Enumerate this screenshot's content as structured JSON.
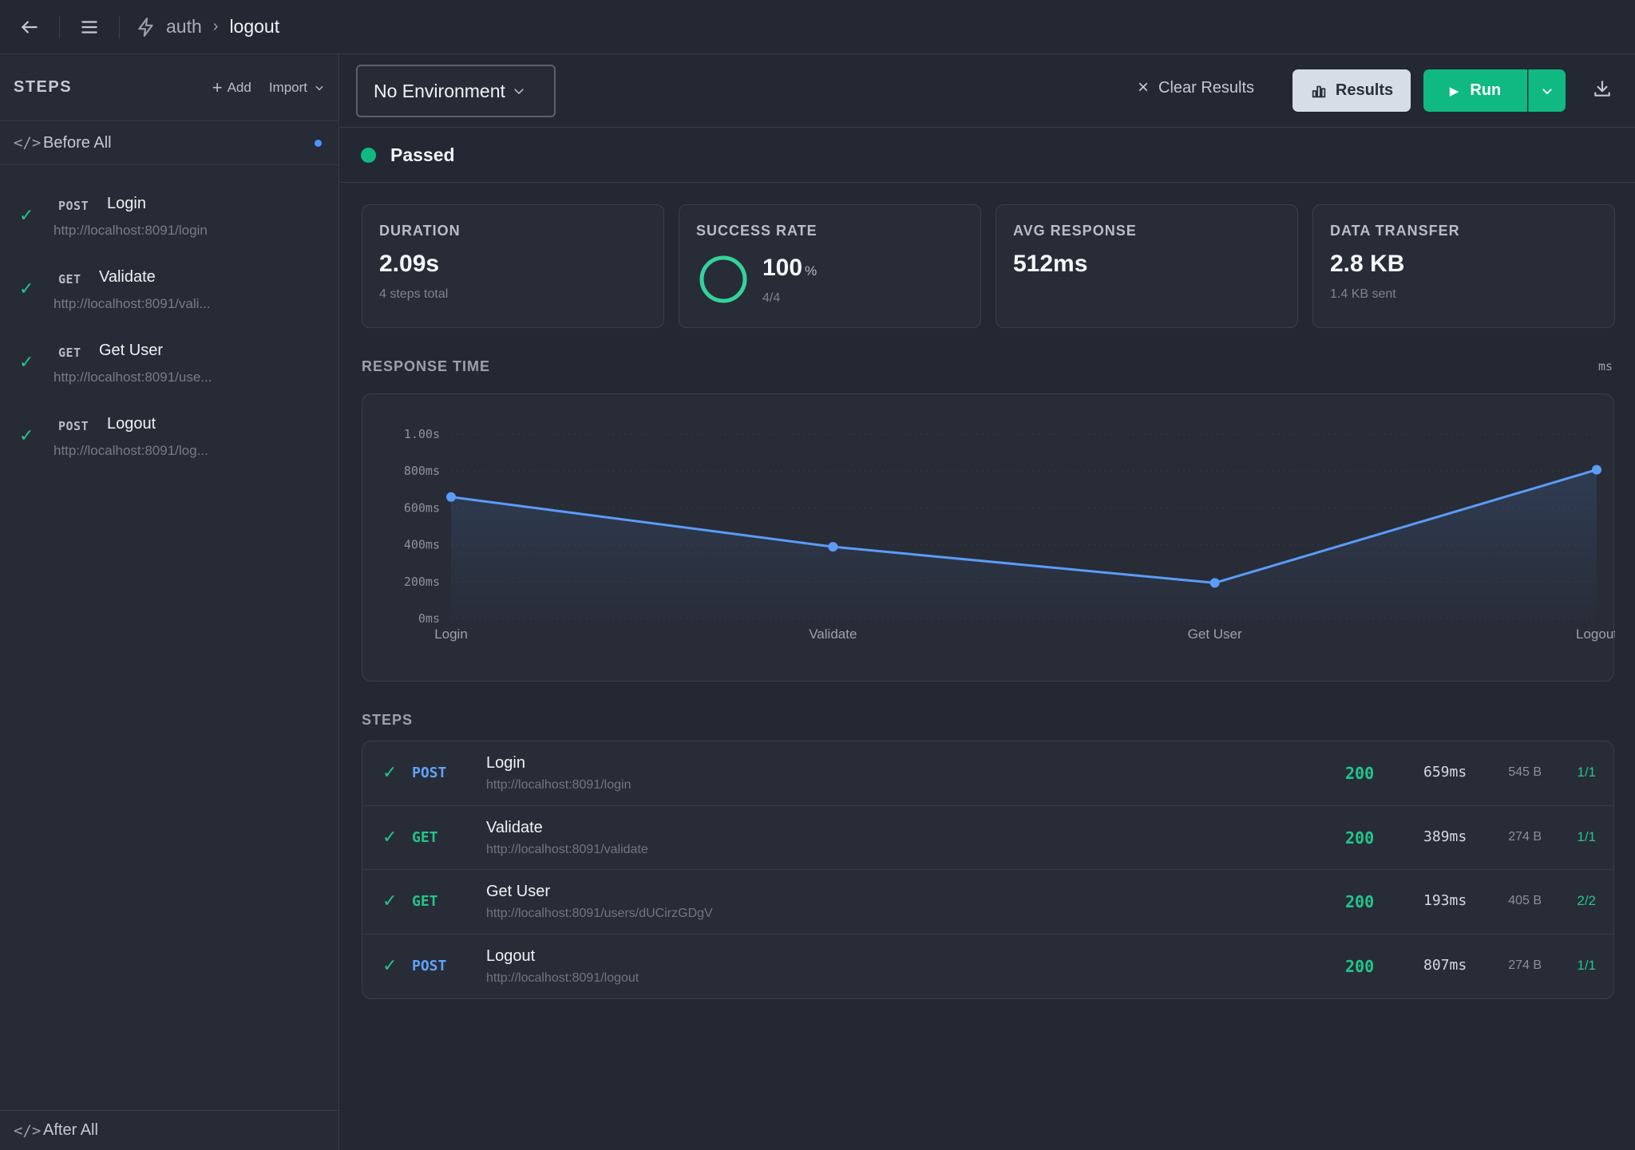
{
  "breadcrumb": {
    "collection": "auth",
    "current": "logout"
  },
  "sidebar": {
    "title": "STEPS",
    "add_label": "Add",
    "import_label": "Import",
    "before_all": "Before All",
    "after_all": "After All",
    "steps": [
      {
        "method": "POST",
        "name": "Login",
        "url": "http://localhost:8091/login",
        "status": "passed"
      },
      {
        "method": "GET",
        "name": "Validate",
        "url": "http://localhost:8091/vali...",
        "status": "passed"
      },
      {
        "method": "GET",
        "name": "Get User",
        "url": "http://localhost:8091/use...",
        "status": "passed"
      },
      {
        "method": "POST",
        "name": "Logout",
        "url": "http://localhost:8091/log...",
        "status": "passed"
      }
    ]
  },
  "toolbar": {
    "environment": "No Environment",
    "clear_label": "Clear Results",
    "results_label": "Results",
    "run_label": "Run"
  },
  "status": {
    "text": "Passed",
    "color": "#10b981"
  },
  "stats": {
    "duration": {
      "label": "DURATION",
      "value": "2.09s",
      "sub": "4 steps total"
    },
    "success_rate": {
      "label": "SUCCESS RATE",
      "value": "100",
      "unit": "%",
      "sub": "4/4",
      "fraction": 1.0
    },
    "avg_response": {
      "label": "AVG RESPONSE",
      "value": "512ms"
    },
    "data_transfer": {
      "label": "DATA TRANSFER",
      "value": "2.8 KB",
      "sub": "1.4 KB sent"
    }
  },
  "response_section": {
    "title": "RESPONSE TIME",
    "unit": "ms"
  },
  "chart_data": {
    "type": "area",
    "title": "RESPONSE TIME",
    "categories": [
      "Login",
      "Validate",
      "Get User",
      "Logout"
    ],
    "values": [
      659,
      389,
      193,
      807
    ],
    "y_ticks": [
      {
        "value": 1000,
        "label": "1.00s"
      },
      {
        "value": 800,
        "label": "800ms"
      },
      {
        "value": 600,
        "label": "600ms"
      },
      {
        "value": 400,
        "label": "400ms"
      },
      {
        "value": 200,
        "label": "200ms"
      },
      {
        "value": 0,
        "label": "0ms"
      }
    ],
    "ylim": [
      0,
      1000
    ],
    "color": "#5b9cf8",
    "grid": true
  },
  "steps_section": {
    "title": "STEPS"
  },
  "table": {
    "rows": [
      {
        "method": "POST",
        "name": "Login",
        "url": "http://localhost:8091/login",
        "code": "200",
        "time": "659ms",
        "size": "545 B",
        "assertions": "1/1"
      },
      {
        "method": "GET",
        "name": "Validate",
        "url": "http://localhost:8091/validate",
        "code": "200",
        "time": "389ms",
        "size": "274 B",
        "assertions": "1/1"
      },
      {
        "method": "GET",
        "name": "Get User",
        "url": "http://localhost:8091/users/dUCirzGDgV",
        "code": "200",
        "time": "193ms",
        "size": "405 B",
        "assertions": "2/2"
      },
      {
        "method": "POST",
        "name": "Logout",
        "url": "http://localhost:8091/logout",
        "code": "200",
        "time": "807ms",
        "size": "274 B",
        "assertions": "1/1"
      }
    ]
  },
  "colors": {
    "accent_green": "#10b981",
    "post": "#5fa2ff",
    "get": "#22c58b"
  }
}
